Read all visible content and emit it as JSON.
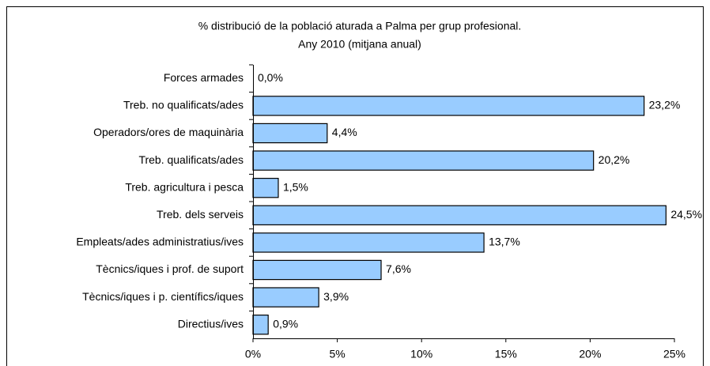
{
  "chart_data": {
    "type": "bar",
    "orientation": "horizontal",
    "title": "% distribució de la població aturada a Palma per grup profesional.",
    "subtitle": "Any 2010 (mitjana anual)",
    "categories": [
      "Forces armades",
      "Treb. no qualificats/ades",
      "Operadors/ores de maquinària",
      "Treb. qualificats/ades",
      "Treb. agricultura i pesca",
      "Treb. dels serveis",
      "Empleats/ades administratius/ives",
      "Tècnics/iques i prof. de suport",
      "Tècnics/iques i p. científics/iques",
      "Directius/ives"
    ],
    "values": [
      0.0,
      23.2,
      4.4,
      20.2,
      1.5,
      24.5,
      13.7,
      7.6,
      3.9,
      0.9
    ],
    "value_labels": [
      "0,0%",
      "23,2%",
      "4,4%",
      "20,2%",
      "1,5%",
      "24,5%",
      "13,7%",
      "7,6%",
      "3,9%",
      "0,9%"
    ],
    "color": "#99ccff",
    "xlim": [
      0,
      25
    ],
    "xticks": [
      {
        "value": 0,
        "label": "0%"
      },
      {
        "value": 5,
        "label": "5%"
      },
      {
        "value": 10,
        "label": "10%"
      },
      {
        "value": 15,
        "label": "15%"
      },
      {
        "value": 20,
        "label": "20%"
      },
      {
        "value": 25,
        "label": "25%"
      }
    ],
    "grid": false
  }
}
